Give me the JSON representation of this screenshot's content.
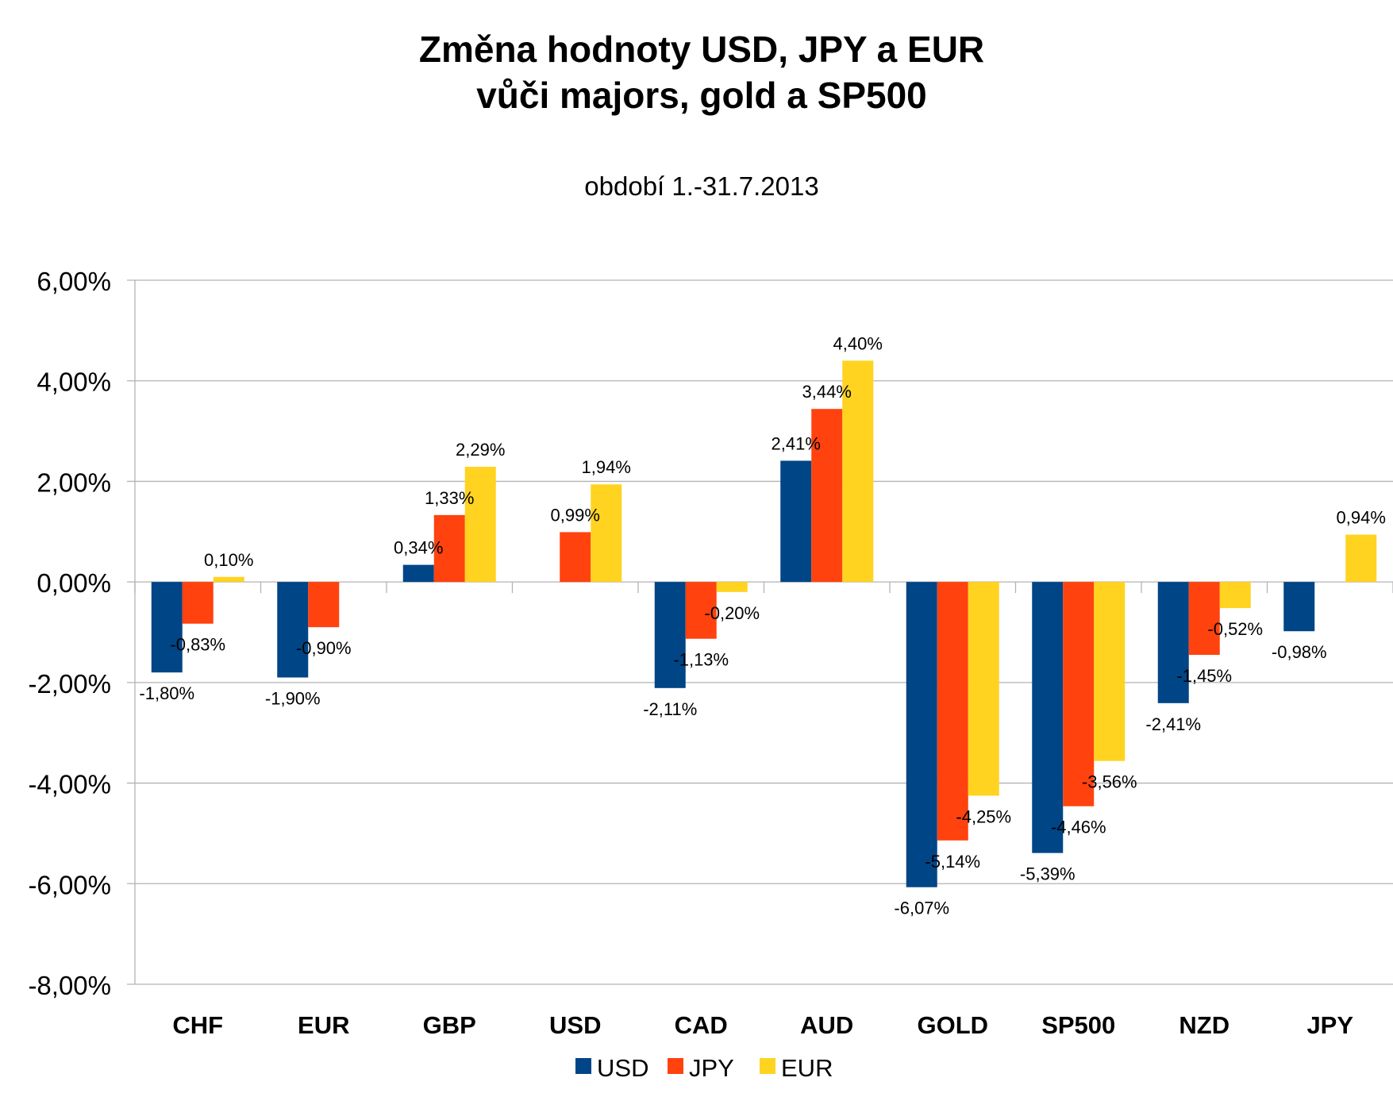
{
  "chart_data": {
    "type": "bar",
    "title_line1": "Změna hodnoty USD, JPY a EUR",
    "title_line2": "vůči majors, gold a SP500",
    "subtitle": "období 1.-31.7.2013",
    "categories": [
      "CHF",
      "EUR",
      "GBP",
      "USD",
      "CAD",
      "AUD",
      "GOLD",
      "SP500",
      "NZD",
      "JPY"
    ],
    "series": [
      {
        "name": "USD",
        "color": "#004586",
        "values": [
          -1.8,
          -1.9,
          0.34,
          null,
          -2.11,
          2.41,
          -6.07,
          -5.39,
          -2.41,
          -0.98
        ],
        "labels": [
          "-1,80%",
          "-1,90%",
          "0,34%",
          "",
          "-2,11%",
          "2,41%",
          "-6,07%",
          "-5,39%",
          "-2,41%",
          "-0,98%"
        ]
      },
      {
        "name": "JPY",
        "color": "#ff420e",
        "values": [
          -0.83,
          -0.9,
          1.33,
          0.99,
          -1.13,
          3.44,
          -5.14,
          -4.46,
          -1.45,
          null
        ],
        "labels": [
          "-0,83%",
          "-0,90%",
          "1,33%",
          "0,99%",
          "-1,13%",
          "3,44%",
          "-5,14%",
          "-4,46%",
          "-1,45%",
          ""
        ]
      },
      {
        "name": "EUR",
        "color": "#ffd320",
        "values": [
          0.1,
          null,
          2.29,
          1.94,
          -0.2,
          4.4,
          -4.25,
          -3.56,
          -0.52,
          0.94
        ],
        "labels": [
          "0,10%",
          "",
          "2,29%",
          "1,94%",
          "-0,20%",
          "4,40%",
          "-4,25%",
          "-3,56%",
          "-0,52%",
          "0,94%"
        ]
      }
    ],
    "ylim": [
      -8,
      6
    ],
    "yticks": [
      6,
      4,
      2,
      0,
      -2,
      -4,
      -6,
      -8
    ],
    "ytick_labels": [
      "6,00%",
      "4,00%",
      "2,00%",
      "0,00%",
      "-2,00%",
      "-4,00%",
      "-6,00%",
      "-8,00%"
    ],
    "grid": true,
    "legend_position": "bottom"
  }
}
